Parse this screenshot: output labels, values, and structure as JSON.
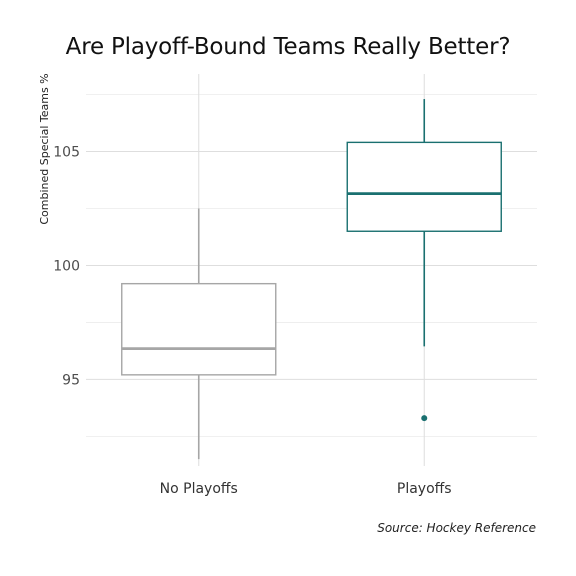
{
  "chart_data": {
    "type": "box",
    "title": "Are Playoff-Bound Teams Really Better?",
    "ylabel": "Combined Special Teams %",
    "xlabel": "",
    "caption": "Source: Hockey Reference",
    "ylim": [
      91.2,
      108.4
    ],
    "y_ticks": [
      95,
      100,
      105
    ],
    "y_minor_gridlines": [
      92.5,
      97.5,
      102.5,
      107.5
    ],
    "categories": [
      "No Playoffs",
      "Playoffs"
    ],
    "boxes": [
      {
        "category": "No Playoffs",
        "whisker_low": 91.5,
        "q1": 95.2,
        "median": 96.35,
        "q3": 99.2,
        "whisker_high": 102.5,
        "outliers": [],
        "color": "#a6a6a6"
      },
      {
        "category": "Playoffs",
        "whisker_low": 96.45,
        "q1": 101.5,
        "median": 103.15,
        "q3": 105.4,
        "whisker_high": 107.3,
        "outliers": [
          93.3
        ],
        "color": "#1a7070"
      }
    ],
    "grid": true,
    "legend": "none"
  }
}
